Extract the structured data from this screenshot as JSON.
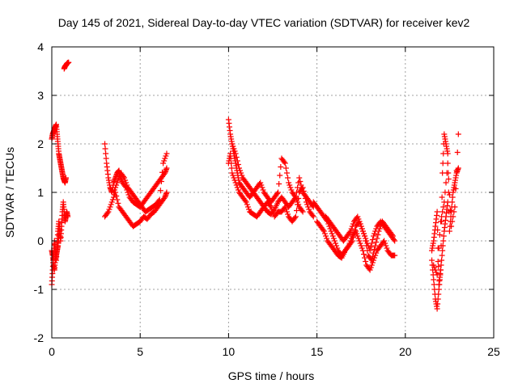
{
  "chart_data": {
    "type": "scatter",
    "title": "Day 145 of 2021, Sidereal Day-to-day VTEC variation (SDTVAR) for receiver kev2",
    "xlabel": "GPS time / hours",
    "ylabel": "SDTVAR / TECUs",
    "xlim": [
      0,
      25
    ],
    "ylim": [
      -2,
      4
    ],
    "xticks": [
      0,
      5,
      10,
      15,
      20,
      25
    ],
    "yticks": [
      -2,
      -1,
      0,
      1,
      2,
      3,
      4
    ],
    "xtick_labels": [
      "0",
      "5",
      "10",
      "15",
      "20",
      "25"
    ],
    "ytick_labels": [
      "-2",
      "-1",
      "0",
      "1",
      "2",
      "3",
      "4"
    ],
    "grid": true,
    "marker": "+",
    "series": [
      {
        "name": "SDTVAR",
        "color": "#ff0000",
        "segments": [
          {
            "x": [
              0.0,
              0.05,
              0.1,
              0.15,
              0.2,
              0.25,
              0.3,
              0.35,
              0.4,
              0.45,
              0.5,
              0.55,
              0.6,
              0.65,
              0.7,
              0.75,
              0.8
            ],
            "y": [
              2.1,
              2.2,
              2.25,
              2.3,
              2.35,
              2.4,
              2.2,
              2.0,
              1.8,
              1.7,
              1.6,
              1.5,
              1.4,
              1.3,
              1.25,
              1.2,
              1.3
            ]
          },
          {
            "x": [
              0.0,
              0.05,
              0.1,
              0.15,
              0.2,
              0.25,
              0.3,
              0.35,
              0.4,
              0.45,
              0.5,
              0.55,
              0.6,
              0.65,
              0.7,
              0.75,
              0.8,
              0.85,
              0.9
            ],
            "y": [
              -0.9,
              -0.6,
              -0.3,
              0.0,
              -0.2,
              -0.4,
              -0.1,
              0.2,
              0.4,
              0.2,
              0.0,
              0.3,
              0.6,
              0.8,
              0.6,
              0.4,
              0.5,
              0.6,
              0.5
            ]
          },
          {
            "x": [
              0.0,
              0.05,
              0.1,
              0.15,
              0.2,
              0.25,
              0.3,
              0.35,
              0.4,
              0.45
            ],
            "y": [
              -0.2,
              -0.3,
              -0.5,
              -0.6,
              -0.4,
              -0.3,
              -0.2,
              -0.1,
              0.1,
              0.3
            ]
          },
          {
            "x": [
              0.7,
              0.75,
              0.8,
              0.85,
              0.9,
              0.95
            ],
            "y": [
              3.55,
              3.6,
              3.62,
              3.65,
              3.67,
              3.68
            ]
          },
          {
            "x": [
              3.0,
              3.1,
              3.2,
              3.3,
              3.4,
              3.5,
              3.6,
              3.7,
              3.8,
              3.9,
              4.0,
              4.2,
              4.4,
              4.6,
              4.8,
              5.0,
              5.2,
              5.4,
              5.6,
              5.8,
              6.0,
              6.2,
              6.4,
              6.5
            ],
            "y": [
              2.0,
              1.6,
              1.3,
              1.1,
              1.0,
              1.2,
              1.3,
              1.4,
              1.45,
              1.3,
              1.2,
              1.1,
              0.9,
              0.8,
              0.75,
              0.7,
              0.8,
              0.9,
              1.0,
              1.1,
              1.2,
              1.3,
              1.4,
              1.5
            ]
          },
          {
            "x": [
              3.0,
              3.2,
              3.4,
              3.6,
              3.8,
              4.0,
              4.2,
              4.4,
              4.6,
              4.8,
              5.0,
              5.2,
              5.4,
              5.6,
              5.8,
              6.0,
              6.2,
              6.4,
              6.5
            ],
            "y": [
              0.5,
              0.6,
              0.8,
              1.0,
              0.7,
              0.6,
              0.5,
              0.4,
              0.3,
              0.35,
              0.4,
              0.5,
              0.45,
              0.55,
              0.6,
              0.7,
              0.8,
              0.9,
              1.0
            ]
          },
          {
            "x": [
              3.5,
              3.7,
              3.9,
              4.1,
              4.3,
              4.5,
              4.7,
              4.9,
              5.1,
              5.3,
              5.5,
              5.7,
              5.9,
              6.1,
              6.3,
              6.5
            ],
            "y": [
              1.0,
              1.2,
              1.4,
              1.3,
              1.1,
              1.0,
              0.9,
              0.8,
              0.7,
              0.6,
              0.65,
              0.7,
              0.75,
              0.85,
              1.6,
              1.8
            ]
          },
          {
            "x": [
              10.0,
              10.1,
              10.2,
              10.3,
              10.4,
              10.5,
              10.6,
              10.8,
              11.0,
              11.2,
              11.4,
              11.6,
              11.8,
              12.0,
              12.2,
              12.4,
              12.6,
              12.8,
              13.0,
              13.2,
              13.4,
              13.6,
              13.8,
              14.0,
              14.2,
              14.4,
              14.6,
              14.8
            ],
            "y": [
              2.5,
              2.2,
              2.0,
              1.8,
              1.6,
              1.4,
              1.2,
              1.1,
              1.0,
              0.9,
              1.0,
              1.1,
              1.2,
              1.0,
              0.9,
              0.8,
              0.9,
              1.0,
              1.7,
              1.6,
              1.2,
              1.0,
              0.9,
              1.3,
              1.0,
              0.9,
              0.8,
              0.7
            ]
          },
          {
            "x": [
              10.0,
              10.1,
              10.2,
              10.4,
              10.6,
              10.8,
              11.0,
              11.2,
              11.4,
              11.6,
              11.8,
              12.0,
              12.2,
              12.4,
              12.6,
              12.8,
              13.0,
              13.2,
              13.4,
              13.6,
              13.8,
              14.0,
              14.2,
              14.4,
              14.6,
              14.8
            ],
            "y": [
              1.6,
              1.8,
              1.4,
              1.2,
              1.0,
              0.9,
              0.8,
              0.6,
              0.55,
              0.5,
              0.6,
              0.7,
              0.8,
              0.7,
              0.5,
              0.6,
              0.6,
              0.7,
              0.5,
              0.4,
              0.5,
              1.0,
              1.1,
              0.8,
              0.6,
              0.5
            ]
          },
          {
            "x": [
              10.2,
              10.4,
              10.6,
              10.8,
              11.0,
              11.2,
              11.4,
              11.6,
              11.8,
              12.0,
              12.2,
              12.4,
              12.6,
              12.8,
              13.0,
              13.2,
              13.4,
              13.6,
              13.8,
              14.0,
              14.2
            ],
            "y": [
              2.0,
              1.8,
              1.5,
              1.3,
              1.2,
              1.1,
              1.0,
              0.9,
              0.8,
              0.7,
              0.6,
              0.55,
              0.65,
              0.8,
              0.9,
              0.8,
              0.7,
              0.8,
              0.9,
              0.7,
              0.6
            ]
          },
          {
            "x": [
              14.8,
              15.0,
              15.2,
              15.4,
              15.6,
              15.8,
              16.0,
              16.2,
              16.4,
              16.6,
              16.8,
              17.0,
              17.2,
              17.4,
              17.6,
              17.8,
              18.0,
              18.2,
              18.4,
              18.6,
              18.8,
              19.0,
              19.2,
              19.4
            ],
            "y": [
              0.8,
              0.7,
              0.6,
              0.5,
              0.4,
              0.2,
              0.0,
              -0.2,
              -0.3,
              -0.2,
              -0.1,
              0.0,
              0.3,
              0.4,
              0.2,
              0.0,
              -0.2,
              0.1,
              0.3,
              0.4,
              0.3,
              0.2,
              0.1,
              0.0
            ]
          },
          {
            "x": [
              15.0,
              15.2,
              15.4,
              15.6,
              15.8,
              16.0,
              16.2,
              16.4,
              16.6,
              16.8,
              17.0,
              17.2,
              17.4,
              17.6,
              17.8,
              18.0,
              18.2,
              18.4,
              18.6,
              18.8,
              19.0,
              19.2,
              19.4
            ],
            "y": [
              0.4,
              0.3,
              0.2,
              0.0,
              -0.1,
              -0.2,
              -0.3,
              -0.35,
              -0.2,
              -0.1,
              0.1,
              0.2,
              0.0,
              -0.2,
              -0.5,
              -0.6,
              -0.4,
              -0.2,
              -0.1,
              0.0,
              -0.2,
              -0.3,
              -0.3
            ]
          },
          {
            "x": [
              15.5,
              15.7,
              15.9,
              16.1,
              16.3,
              16.5,
              16.7,
              16.9,
              17.1,
              17.3,
              17.5,
              17.7,
              17.9,
              18.1,
              18.3,
              18.5,
              18.7,
              18.9,
              19.1,
              19.3
            ],
            "y": [
              0.5,
              0.4,
              0.3,
              0.2,
              0.1,
              0.0,
              0.1,
              0.2,
              0.4,
              0.5,
              0.3,
              0.1,
              -0.3,
              -0.4,
              -0.1,
              0.2,
              0.4,
              0.3,
              0.2,
              0.1
            ]
          },
          {
            "x": [
              21.5,
              21.6,
              21.7,
              21.8,
              21.9,
              22.0,
              22.1,
              22.2,
              22.3,
              22.4
            ],
            "y": [
              -0.4,
              -0.8,
              -1.2,
              -1.4,
              -1.0,
              -0.6,
              -0.2,
              0.2,
              0.5,
              0.8
            ]
          },
          {
            "x": [
              21.5,
              21.6,
              21.7,
              21.8,
              21.9,
              22.0,
              22.1,
              22.2,
              22.3,
              22.4,
              22.5,
              22.6,
              22.7,
              22.8,
              22.9,
              23.0
            ],
            "y": [
              -0.2,
              0.0,
              0.3,
              0.6,
              -0.9,
              -0.6,
              1.4,
              2.2,
              2.0,
              1.8,
              0.2,
              0.6,
              1.0,
              1.2,
              1.4,
              1.5
            ]
          },
          {
            "x": [
              21.6,
              21.8,
              22.0,
              22.2,
              22.4,
              22.6,
              22.8,
              23.0
            ],
            "y": [
              -0.5,
              -0.7,
              0.4,
              0.8,
              1.6,
              0.3,
              0.7,
              2.2
            ]
          }
        ]
      }
    ]
  }
}
